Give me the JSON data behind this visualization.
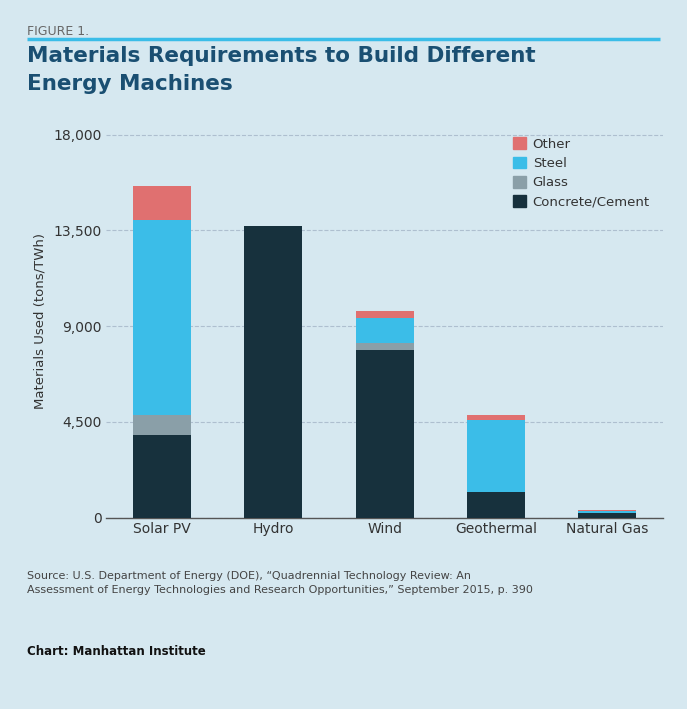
{
  "categories": [
    "Solar PV",
    "Hydro",
    "Wind",
    "Geothermal",
    "Natural Gas"
  ],
  "concrete": [
    3900,
    13700,
    7900,
    1200,
    200
  ],
  "glass": [
    900,
    0,
    300,
    0,
    0
  ],
  "steel": [
    9200,
    0,
    1200,
    3400,
    100
  ],
  "other": [
    1600,
    0,
    300,
    200,
    50
  ],
  "colors": {
    "concrete": "#17313d",
    "glass": "#8a9fa8",
    "steel": "#3bbde8",
    "other": "#e07070"
  },
  "figure_label": "FIGURE 1.",
  "title_line1": "Materials Requirements to Build Different",
  "title_line2": "Energy Machines",
  "ylabel": "Materials Used (tons/TWh)",
  "ylim": [
    0,
    18500
  ],
  "yticks": [
    0,
    4500,
    9000,
    13500,
    18000
  ],
  "background_color": "#d6e8f0",
  "source_text": "Source: U.S. Department of Energy (DOE), “Quadrennial Technology Review: An\nAssessment of Energy Technologies and Research Opportunities,” September 2015, p. 390",
  "chart_credit": "Chart: Manhattan Institute",
  "title_color": "#1a4f72",
  "figure_label_color": "#666666",
  "axis_line_color": "#555555",
  "grid_color": "#aabbcc",
  "tick_label_color": "#333333",
  "cyan_rule_color": "#3bbde8"
}
